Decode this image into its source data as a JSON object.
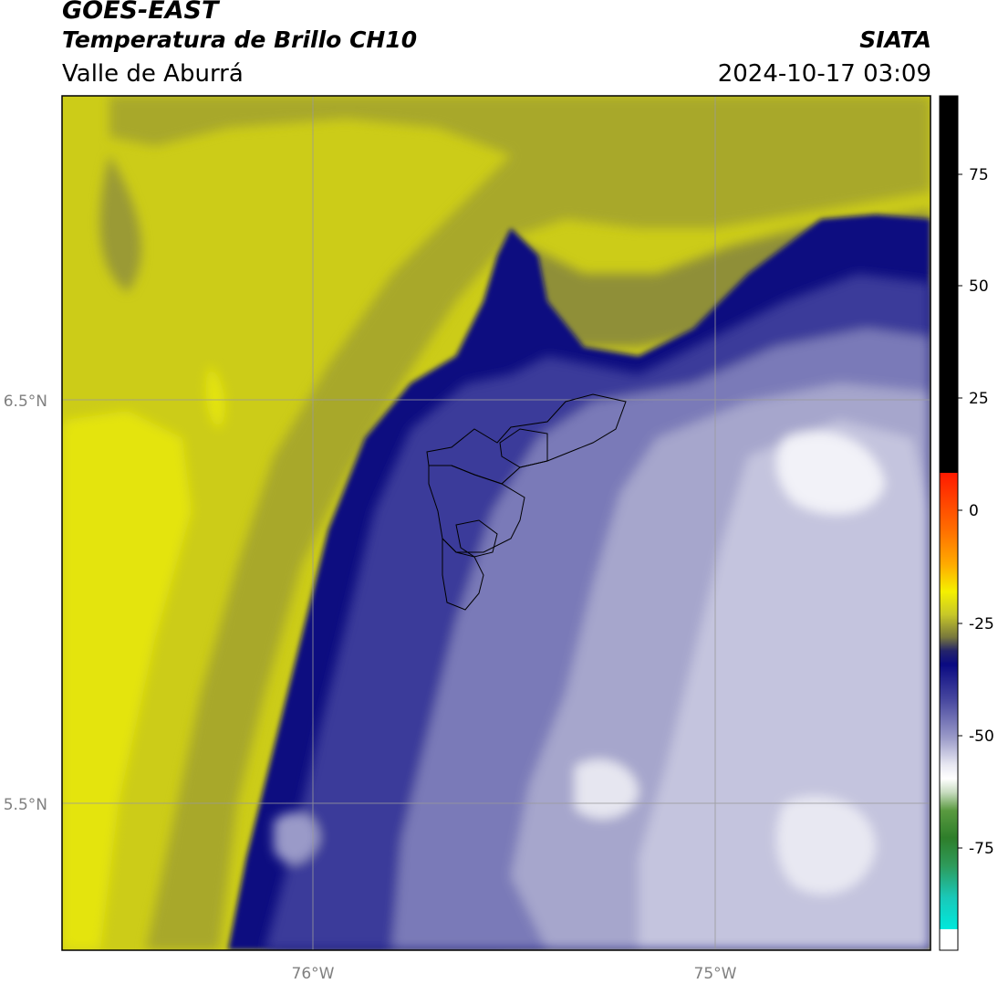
{
  "header": {
    "satellite": "GOES-EAST",
    "product": "Temperatura de Brillo CH10",
    "region": "Valle de Aburrá",
    "brand": "SIATA",
    "timestamp": "2024-10-17 03:09"
  },
  "axes": {
    "lat_ticks": [
      "6.5°N",
      "5.5°N"
    ],
    "lon_ticks": [
      "76°W",
      "75°W"
    ]
  },
  "colorbar": {
    "ticks": [
      "75",
      "50",
      "25",
      "0",
      "-25",
      "-50",
      "-75"
    ],
    "colors": {
      "black": "#000000",
      "red": "#ff2200",
      "orange": "#ff9900",
      "yellow": "#f0f000",
      "olive": "#8c8c28",
      "navy": "#0a0a7a",
      "lavender": "#b8b8d8",
      "white": "#f4f4f4",
      "green": "#3c8c2a",
      "cyan": "#00e8d8"
    }
  },
  "map": {
    "colors": {
      "yellow": "#cccc18",
      "yellow_bright": "#e4e40c",
      "olive": "#a8a82a",
      "olive_dark": "#8a8a3c",
      "navy": "#0c0c80",
      "blue": "#3a3a9a",
      "periwinkle": "#7a7ab8",
      "lavender": "#a6a6cc",
      "pale": "#d0d0e6",
      "white": "#f2f2f8"
    }
  }
}
